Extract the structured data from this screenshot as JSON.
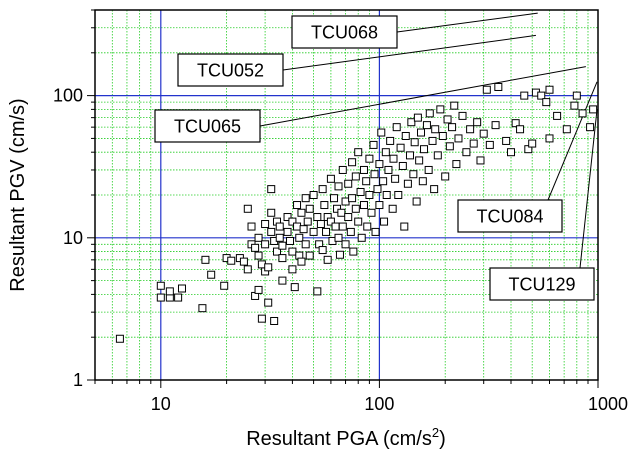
{
  "chart_data": {
    "type": "scatter",
    "title": "",
    "xlabel": "Resultant PGA (cm/s",
    "xlabel_sup": "2",
    "xlabel_close": ")",
    "ylabel": "Resultant PGV (cm/s)",
    "xscale": "log",
    "yscale": "log",
    "xlim": [
      5,
      1000
    ],
    "ylim": [
      1,
      400
    ],
    "xticks": [
      10,
      100,
      1000
    ],
    "xtick_labels": [
      "10",
      "100",
      "1000"
    ],
    "yticks": [
      1,
      10,
      100
    ],
    "ytick_labels": [
      "1",
      "10",
      "100"
    ],
    "grid": "minor: green dotted; major: blue solid",
    "colors": {
      "major_grid": "#2233cc",
      "minor_grid": "#22cc22",
      "marker": "#000000",
      "background": "#ffffff"
    },
    "marker": "open-square",
    "annotations": [
      {
        "label": "TCU068",
        "x": 530,
        "y": 380
      },
      {
        "label": "TCU052",
        "x": 520,
        "y": 265
      },
      {
        "label": "TCU065",
        "x": 880,
        "y": 160
      },
      {
        "label": "TCU084",
        "x": 990,
        "y": 125
      },
      {
        "label": "TCU129",
        "x": 990,
        "y": 80
      }
    ],
    "series": [
      {
        "points": [
          [
            6.5,
            1.95
          ],
          [
            10.0,
            4.6
          ],
          [
            10.0,
            3.8
          ],
          [
            11.0,
            3.8
          ],
          [
            11.0,
            4.2
          ],
          [
            12.0,
            3.8
          ],
          [
            12.5,
            4.4
          ],
          [
            15.5,
            3.2
          ],
          [
            16.0,
            7.0
          ],
          [
            17.0,
            5.5
          ],
          [
            19.5,
            4.6
          ],
          [
            20.0,
            7.2
          ],
          [
            21.0,
            6.9
          ],
          [
            23.0,
            7.2
          ],
          [
            24.0,
            6.8
          ],
          [
            25.0,
            6.0
          ],
          [
            25.0,
            16.0
          ],
          [
            26.0,
            12.0
          ],
          [
            26.0,
            9.0
          ],
          [
            27.0,
            8.5
          ],
          [
            27.0,
            3.9
          ],
          [
            28.0,
            10.0
          ],
          [
            28.0,
            7.5
          ],
          [
            28.0,
            4.3
          ],
          [
            29.0,
            6.5
          ],
          [
            29.0,
            2.7
          ],
          [
            30.0,
            12.5
          ],
          [
            30.0,
            9.0
          ],
          [
            30.0,
            5.8
          ],
          [
            31.0,
            6.2
          ],
          [
            31.0,
            3.5
          ],
          [
            32.0,
            22.0
          ],
          [
            32.0,
            15.0
          ],
          [
            32.0,
            11.0
          ],
          [
            33.0,
            9.5
          ],
          [
            33.0,
            2.6
          ],
          [
            34.0,
            13.0
          ],
          [
            34.0,
            8.0
          ],
          [
            35.0,
            12.0
          ],
          [
            35.0,
            10.0
          ],
          [
            36.0,
            8.8
          ],
          [
            36.0,
            7.2
          ],
          [
            36.0,
            5.0
          ],
          [
            38.0,
            14.0
          ],
          [
            38.0,
            11.0
          ],
          [
            39.0,
            9.5
          ],
          [
            40.0,
            13.0
          ],
          [
            40.0,
            8.0
          ],
          [
            40.0,
            6.0
          ],
          [
            41.0,
            4.5
          ],
          [
            42.0,
            17.0
          ],
          [
            42.0,
            12.0
          ],
          [
            43.0,
            10.0
          ],
          [
            43.0,
            7.5
          ],
          [
            44.0,
            15.0
          ],
          [
            44.0,
            6.8
          ],
          [
            45.0,
            11.5
          ],
          [
            46.0,
            19.0
          ],
          [
            46.0,
            9.0
          ],
          [
            47.0,
            13.0
          ],
          [
            48.0,
            7.5
          ],
          [
            48.0,
            16.0
          ],
          [
            50.0,
            11.0
          ],
          [
            50.0,
            20.0
          ],
          [
            52.0,
            14.0
          ],
          [
            52.0,
            4.2
          ],
          [
            53.0,
            9.0
          ],
          [
            54.0,
            12.5
          ],
          [
            55.0,
            22.0
          ],
          [
            55.0,
            8.2
          ],
          [
            56.0,
            17.0
          ],
          [
            57.0,
            11.0
          ],
          [
            58.0,
            14.0
          ],
          [
            58.0,
            7.0
          ],
          [
            60.0,
            26.0
          ],
          [
            60.0,
            13.0
          ],
          [
            61.0,
            9.5
          ],
          [
            62.0,
            19.0
          ],
          [
            63.0,
            12.0
          ],
          [
            64.0,
            16.0
          ],
          [
            65.0,
            23.0
          ],
          [
            65.0,
            10.0
          ],
          [
            66.0,
            7.6
          ],
          [
            67.0,
            15.0
          ],
          [
            68.0,
            30.0
          ],
          [
            68.0,
            12.0
          ],
          [
            70.0,
            18.0
          ],
          [
            70.0,
            9.0
          ],
          [
            72.0,
            24.0
          ],
          [
            72.0,
            14.0
          ],
          [
            74.0,
            11.0
          ],
          [
            75.0,
            34.0
          ],
          [
            75.0,
            19.0
          ],
          [
            76.0,
            8.0
          ],
          [
            78.0,
            16.0
          ],
          [
            78.0,
            27.0
          ],
          [
            80.0,
            13.0
          ],
          [
            80.0,
            40.0
          ],
          [
            82.0,
            21.0
          ],
          [
            83.0,
            10.0
          ],
          [
            85.0,
            30.0
          ],
          [
            85.0,
            17.0
          ],
          [
            87.0,
            25.0
          ],
          [
            88.0,
            12.0
          ],
          [
            90.0,
            36.0
          ],
          [
            90.0,
            20.0
          ],
          [
            92.0,
            15.0
          ],
          [
            94.0,
            45.0
          ],
          [
            95.0,
            28.0
          ],
          [
            96.0,
            11.0
          ],
          [
            98.0,
            22.0
          ],
          [
            100.0,
            33.0
          ],
          [
            100.0,
            17.0
          ],
          [
            102.0,
            55.0
          ],
          [
            104.0,
            25.0
          ],
          [
            105.0,
            13.0
          ],
          [
            107.0,
            40.0
          ],
          [
            108.0,
            20.0
          ],
          [
            110.0,
            30.0
          ],
          [
            112.0,
            48.0
          ],
          [
            115.0,
            16.0
          ],
          [
            116.0,
            36.0
          ],
          [
            118.0,
            26.0
          ],
          [
            120.0,
            60.0
          ],
          [
            122.0,
            20.0
          ],
          [
            125.0,
            43.0
          ],
          [
            128.0,
            32.0
          ],
          [
            130.0,
            12.0
          ],
          [
            132.0,
            52.0
          ],
          [
            135.0,
            24.0
          ],
          [
            138.0,
            38.0
          ],
          [
            140.0,
            65.0
          ],
          [
            143.0,
            28.0
          ],
          [
            145.0,
            47.0
          ],
          [
            148.0,
            18.0
          ],
          [
            150.0,
            70.0
          ],
          [
            152.0,
            35.0
          ],
          [
            155.0,
            55.0
          ],
          [
            158.0,
            25.0
          ],
          [
            160.0,
            42.0
          ],
          [
            165.0,
            62.0
          ],
          [
            168.0,
            30.0
          ],
          [
            170.0,
            75.0
          ],
          [
            175.0,
            48.0
          ],
          [
            178.0,
            22.0
          ],
          [
            180.0,
            58.0
          ],
          [
            185.0,
            38.0
          ],
          [
            190.0,
            80.0
          ],
          [
            195.0,
            52.0
          ],
          [
            200.0,
            27.0
          ],
          [
            205.0,
            68.0
          ],
          [
            210.0,
            44.0
          ],
          [
            215.0,
            60.0
          ],
          [
            220.0,
            85.0
          ],
          [
            225.0,
            33.0
          ],
          [
            230.0,
            50.0
          ],
          [
            240.0,
            72.0
          ],
          [
            250.0,
            40.0
          ],
          [
            260.0,
            58.0
          ],
          [
            270.0,
            46.0
          ],
          [
            280.0,
            65.0
          ],
          [
            290.0,
            35.0
          ],
          [
            300.0,
            54.0
          ],
          [
            310.0,
            110.0
          ],
          [
            320.0,
            45.0
          ],
          [
            340.0,
            62.0
          ],
          [
            350.0,
            115.0
          ],
          [
            380.0,
            48.0
          ],
          [
            400.0,
            40.0
          ],
          [
            420.0,
            64.0
          ],
          [
            440.0,
            58.0
          ],
          [
            460.0,
            100.0
          ],
          [
            480.0,
            42.0
          ],
          [
            500.0,
            46.0
          ],
          [
            520.0,
            105.0
          ],
          [
            550.0,
            100.0
          ],
          [
            580.0,
            90.0
          ],
          [
            600.0,
            50.0
          ],
          [
            600.0,
            110.0
          ],
          [
            650.0,
            72.0
          ],
          [
            720.0,
            58.0
          ],
          [
            780.0,
            85.0
          ],
          [
            800.0,
            100.0
          ],
          [
            850.0,
            75.0
          ],
          [
            920.0,
            60.0
          ],
          [
            950.0,
            80.0
          ]
        ]
      }
    ]
  }
}
